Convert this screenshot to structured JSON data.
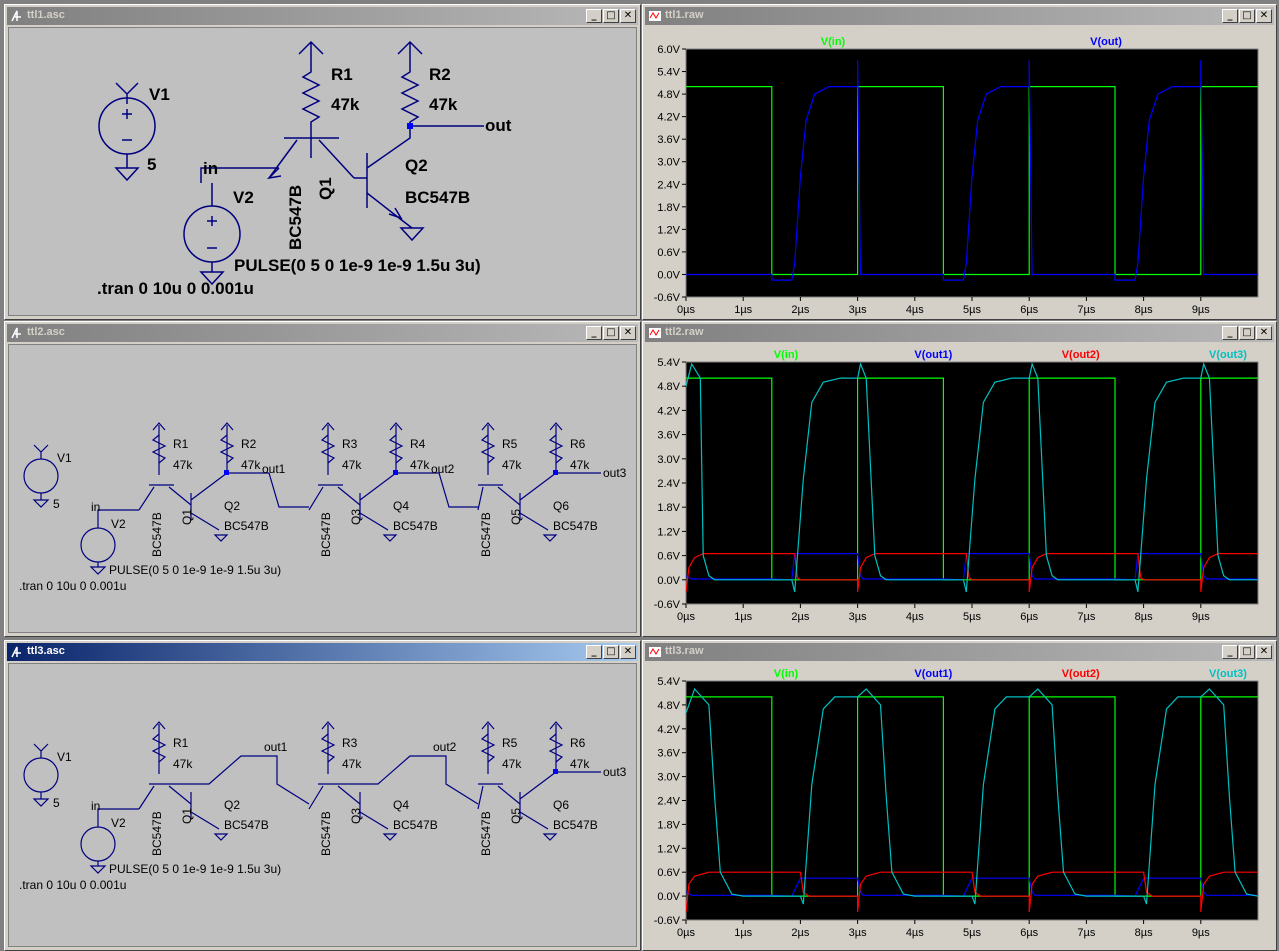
{
  "windows": {
    "sch1": {
      "title": "ttl1.asc"
    },
    "sch2": {
      "title": "ttl2.asc"
    },
    "sch3": {
      "title": "ttl3.asc"
    },
    "plot1": {
      "title": "ttl1.raw"
    },
    "plot2": {
      "title": "ttl2.raw"
    },
    "plot3": {
      "title": "ttl3.raw"
    }
  },
  "window_buttons": {
    "minimize": "_",
    "restore": "□",
    "close": "✕"
  },
  "schematic1": {
    "v1_name": "V1",
    "v1_value": "5",
    "v2_name": "V2",
    "net_in": "in",
    "r1_name": "R1",
    "r1_value": "47k",
    "r2_name": "R2",
    "r2_value": "47k",
    "q1_name": "Q1",
    "q1_model": "BC547B",
    "q2_name": "Q2",
    "q2_model": "BC547B",
    "net_out": "out",
    "pulse": "PULSE(0 5 0 1e-9 1e-9 1.5u 3u)",
    "tran": ".tran 0 10u 0 0.001u"
  },
  "schematic2": {
    "v1_name": "V1",
    "v1_value": "5",
    "v2_name": "V2",
    "net_in": "in",
    "resistors": [
      {
        "name": "R1",
        "value": "47k"
      },
      {
        "name": "R2",
        "value": "47k"
      },
      {
        "name": "R3",
        "value": "47k"
      },
      {
        "name": "R4",
        "value": "47k"
      },
      {
        "name": "R5",
        "value": "47k"
      },
      {
        "name": "R6",
        "value": "47k"
      }
    ],
    "q_left": [
      "Q1",
      "Q3",
      "Q5"
    ],
    "q_right": [
      "Q2",
      "Q4",
      "Q6"
    ],
    "model": "BC547B",
    "nets": [
      "out1",
      "out2",
      "out3"
    ],
    "pulse": "PULSE(0 5 0 1e-9 1e-9 1.5u 3u)",
    "tran": ".tran 0 10u 0 0.001u"
  },
  "schematic3": {
    "v1_name": "V1",
    "v1_value": "5",
    "v2_name": "V2",
    "net_in": "in",
    "resistors": [
      {
        "name": "R1",
        "value": "47k"
      },
      {
        "name": "R3",
        "value": "47k"
      },
      {
        "name": "R5",
        "value": "47k"
      },
      {
        "name": "R6",
        "value": "47k"
      }
    ],
    "q_left": [
      "Q1",
      "Q3",
      "Q5"
    ],
    "q_right": [
      "Q2",
      "Q4",
      "Q6"
    ],
    "model": "BC547B",
    "nets": [
      "out1",
      "out2",
      "out3"
    ],
    "pulse": "PULSE(0 5 0 1e-9 1e-9 1.5u 3u)",
    "tran": ".tran 0 10u 0 0.001u"
  },
  "colors": {
    "green": "#00ff00",
    "blue": "#0000ff",
    "red": "#ff0000",
    "cyan": "#00c0c0",
    "plot_bg": "#000000",
    "grid": "#808080",
    "schematic_ink": "#000080"
  },
  "chart_data": [
    {
      "type": "line",
      "title": "ttl1.raw",
      "xlim": [
        0,
        10
      ],
      "ylim": [
        -0.6,
        6.0
      ],
      "x_ticks": [
        "0µs",
        "1µs",
        "2µs",
        "3µs",
        "4µs",
        "5µs",
        "6µs",
        "7µs",
        "8µs",
        "9µs"
      ],
      "y_ticks": [
        "-0.6V",
        "0.0V",
        "0.6V",
        "1.2V",
        "1.8V",
        "2.4V",
        "3.0V",
        "3.6V",
        "4.2V",
        "4.8V",
        "5.4V",
        "6.0V"
      ],
      "grid": true,
      "series": [
        {
          "name": "V(in)",
          "color": "#00ff00",
          "x": [
            0,
            1.5,
            1.5,
            3,
            3,
            4.5,
            4.5,
            6,
            6,
            7.5,
            7.5,
            9,
            9,
            10
          ],
          "y": [
            5,
            5,
            0,
            0,
            5,
            5,
            0,
            0,
            5,
            5,
            0,
            0,
            5,
            5
          ]
        },
        {
          "name": "V(out)",
          "color": "#0000ff",
          "x": [
            0,
            1.5,
            1.5,
            1.85,
            1.9,
            2.0,
            2.1,
            2.25,
            2.5,
            3.0,
            3.0,
            3.05,
            4.5,
            4.5,
            4.85,
            4.9,
            5.0,
            5.1,
            5.25,
            5.5,
            6.0,
            6.0,
            6.05,
            7.5,
            7.5,
            7.85,
            7.9,
            8.0,
            8.1,
            8.25,
            8.5,
            9.0,
            9.0,
            9.05,
            10
          ],
          "y": [
            0,
            0,
            -0.15,
            -0.15,
            0.3,
            2.6,
            4.1,
            4.8,
            5.0,
            5.0,
            5.7,
            0.0,
            0.0,
            -0.15,
            -0.15,
            0.3,
            2.6,
            4.1,
            4.8,
            5.0,
            5.0,
            5.7,
            0.0,
            0.0,
            -0.15,
            -0.15,
            0.3,
            2.6,
            4.1,
            4.8,
            5.0,
            5.0,
            5.7,
            0.0,
            0.0
          ]
        }
      ]
    },
    {
      "type": "line",
      "title": "ttl2.raw",
      "xlim": [
        0,
        10
      ],
      "ylim": [
        -0.6,
        5.4
      ],
      "x_ticks": [
        "0µs",
        "1µs",
        "2µs",
        "3µs",
        "4µs",
        "5µs",
        "6µs",
        "7µs",
        "8µs",
        "9µs"
      ],
      "y_ticks": [
        "-0.6V",
        "0.0V",
        "0.6V",
        "1.2V",
        "1.8V",
        "2.4V",
        "3.0V",
        "3.6V",
        "4.2V",
        "4.8V",
        "5.4V"
      ],
      "grid": true,
      "series": [
        {
          "name": "V(in)",
          "color": "#00ff00",
          "x": [
            0,
            1.5,
            1.5,
            3,
            3,
            4.5,
            4.5,
            6,
            6,
            7.5,
            7.5,
            9,
            9,
            10
          ],
          "y": [
            5,
            5,
            0,
            0,
            5,
            5,
            0,
            0,
            5,
            5,
            0,
            0,
            5,
            5
          ]
        },
        {
          "name": "V(out1)",
          "color": "#0000ff",
          "x": [
            0,
            0.1,
            1.5,
            1.85,
            1.9,
            3.0,
            3.05,
            3.1,
            4.5,
            4.85,
            4.9,
            6.0,
            6.05,
            6.1,
            7.5,
            7.85,
            7.9,
            9.0,
            9.05,
            9.1,
            10
          ],
          "y": [
            0.1,
            0.02,
            0.02,
            0.0,
            0.65,
            0.65,
            0.1,
            0.02,
            0.02,
            0.0,
            0.65,
            0.65,
            0.1,
            0.02,
            0.02,
            0.0,
            0.65,
            0.65,
            0.1,
            0.02,
            0.02
          ]
        },
        {
          "name": "V(out2)",
          "color": "#ff0000",
          "x": [
            0,
            0.05,
            0.15,
            0.3,
            1.9,
            1.95,
            2.0,
            3.0,
            3.0,
            3.05,
            3.15,
            3.3,
            4.9,
            4.95,
            5.0,
            6.0,
            6.0,
            6.05,
            6.15,
            6.3,
            7.9,
            7.95,
            8.0,
            9.0,
            9.0,
            9.05,
            9.15,
            9.3,
            10
          ],
          "y": [
            -0.3,
            0.3,
            0.55,
            0.65,
            0.65,
            0.05,
            0.0,
            0.0,
            -0.3,
            0.3,
            0.55,
            0.65,
            0.65,
            0.05,
            0.0,
            0.0,
            -0.3,
            0.3,
            0.55,
            0.65,
            0.65,
            0.05,
            0.0,
            0.0,
            -0.3,
            0.3,
            0.55,
            0.65,
            0.65
          ]
        },
        {
          "name": "V(out3)",
          "color": "#00c0c0",
          "x": [
            0,
            0.1,
            0.25,
            0.3,
            0.4,
            0.5,
            1.5,
            1.85,
            1.9,
            2.05,
            2.2,
            2.4,
            2.7,
            3.0,
            3.05,
            3.15,
            3.3,
            3.4,
            3.5,
            4.5,
            4.85,
            4.9,
            5.05,
            5.2,
            5.4,
            5.7,
            6.0,
            6.05,
            6.15,
            6.3,
            6.4,
            6.5,
            7.5,
            7.85,
            7.9,
            8.05,
            8.2,
            8.4,
            8.7,
            9.0,
            9.05,
            9.15,
            9.3,
            9.4,
            9.5,
            10
          ],
          "y": [
            4.8,
            5.35,
            5.0,
            0.6,
            0.1,
            0.0,
            0.0,
            0.0,
            -0.3,
            2.5,
            4.4,
            4.9,
            5.0,
            5.0,
            5.35,
            5.0,
            0.6,
            0.1,
            0.0,
            0.0,
            0.0,
            -0.3,
            2.5,
            4.4,
            4.9,
            5.0,
            5.0,
            5.35,
            5.0,
            0.6,
            0.1,
            0.0,
            0.0,
            0.0,
            -0.3,
            2.5,
            4.4,
            4.9,
            5.0,
            5.0,
            5.35,
            5.0,
            0.6,
            0.1,
            0.0,
            0.0
          ]
        }
      ]
    },
    {
      "type": "line",
      "title": "ttl3.raw",
      "xlim": [
        0,
        10
      ],
      "ylim": [
        -0.6,
        5.4
      ],
      "x_ticks": [
        "0µs",
        "1µs",
        "2µs",
        "3µs",
        "4µs",
        "5µs",
        "6µs",
        "7µs",
        "8µs",
        "9µs"
      ],
      "y_ticks": [
        "-0.6V",
        "0.0V",
        "0.6V",
        "1.2V",
        "1.8V",
        "2.4V",
        "3.0V",
        "3.6V",
        "4.2V",
        "4.8V",
        "5.4V"
      ],
      "grid": true,
      "series": [
        {
          "name": "V(in)",
          "color": "#00ff00",
          "x": [
            0,
            1.5,
            1.5,
            3,
            3,
            4.5,
            4.5,
            6,
            6,
            7.5,
            7.5,
            9,
            9,
            10
          ],
          "y": [
            5,
            5,
            0,
            0,
            5,
            5,
            0,
            0,
            5,
            5,
            0,
            0,
            5,
            5
          ]
        },
        {
          "name": "V(out1)",
          "color": "#0000ff",
          "x": [
            0,
            0.1,
            1.5,
            1.85,
            2.0,
            3.0,
            3.05,
            3.1,
            4.5,
            4.85,
            5.0,
            6.0,
            6.05,
            6.1,
            7.5,
            7.85,
            8.0,
            9.0,
            9.05,
            9.1,
            10
          ],
          "y": [
            0.1,
            0.02,
            0.02,
            0.0,
            0.45,
            0.45,
            0.1,
            0.02,
            0.02,
            0.0,
            0.45,
            0.45,
            0.1,
            0.02,
            0.02,
            0.0,
            0.45,
            0.45,
            0.1,
            0.02,
            0.02
          ]
        },
        {
          "name": "V(out2)",
          "color": "#ff0000",
          "x": [
            0,
            0.05,
            0.15,
            0.4,
            2.0,
            2.05,
            2.15,
            3.0,
            3.0,
            3.05,
            3.15,
            3.4,
            5.0,
            5.05,
            5.15,
            6.0,
            6.0,
            6.05,
            6.15,
            6.4,
            8.0,
            8.05,
            8.15,
            9.0,
            9.0,
            9.05,
            9.15,
            9.4,
            10
          ],
          "y": [
            -0.4,
            0.3,
            0.5,
            0.6,
            0.6,
            0.1,
            0.0,
            0.0,
            -0.4,
            0.3,
            0.5,
            0.6,
            0.6,
            0.1,
            0.0,
            0.0,
            -0.4,
            0.3,
            0.5,
            0.6,
            0.6,
            0.1,
            0.0,
            0.0,
            -0.4,
            0.3,
            0.5,
            0.6,
            0.6
          ]
        },
        {
          "name": "V(out3)",
          "color": "#00c0c0",
          "x": [
            0,
            0.15,
            0.4,
            0.5,
            0.6,
            0.8,
            1.0,
            1.5,
            2.0,
            2.05,
            2.2,
            2.4,
            2.6,
            3.0,
            3.15,
            3.4,
            3.5,
            3.6,
            3.8,
            4.0,
            4.5,
            5.0,
            5.05,
            5.2,
            5.4,
            5.6,
            6.0,
            6.15,
            6.4,
            6.5,
            6.6,
            6.8,
            7.0,
            7.5,
            8.0,
            8.05,
            8.2,
            8.4,
            8.6,
            9.0,
            9.15,
            9.4,
            9.5,
            9.6,
            9.8,
            10
          ],
          "y": [
            4.6,
            5.2,
            4.8,
            2.5,
            0.6,
            0.05,
            0.0,
            0.0,
            0.0,
            -0.2,
            2.8,
            4.7,
            5.0,
            5.0,
            5.2,
            4.8,
            2.5,
            0.6,
            0.05,
            0.0,
            0.0,
            0.0,
            -0.2,
            2.8,
            4.7,
            5.0,
            5.0,
            5.2,
            4.8,
            2.5,
            0.6,
            0.05,
            0.0,
            0.0,
            0.0,
            -0.2,
            2.8,
            4.7,
            5.0,
            5.0,
            5.2,
            4.8,
            2.5,
            0.6,
            0.05,
            0.0
          ]
        }
      ]
    }
  ]
}
